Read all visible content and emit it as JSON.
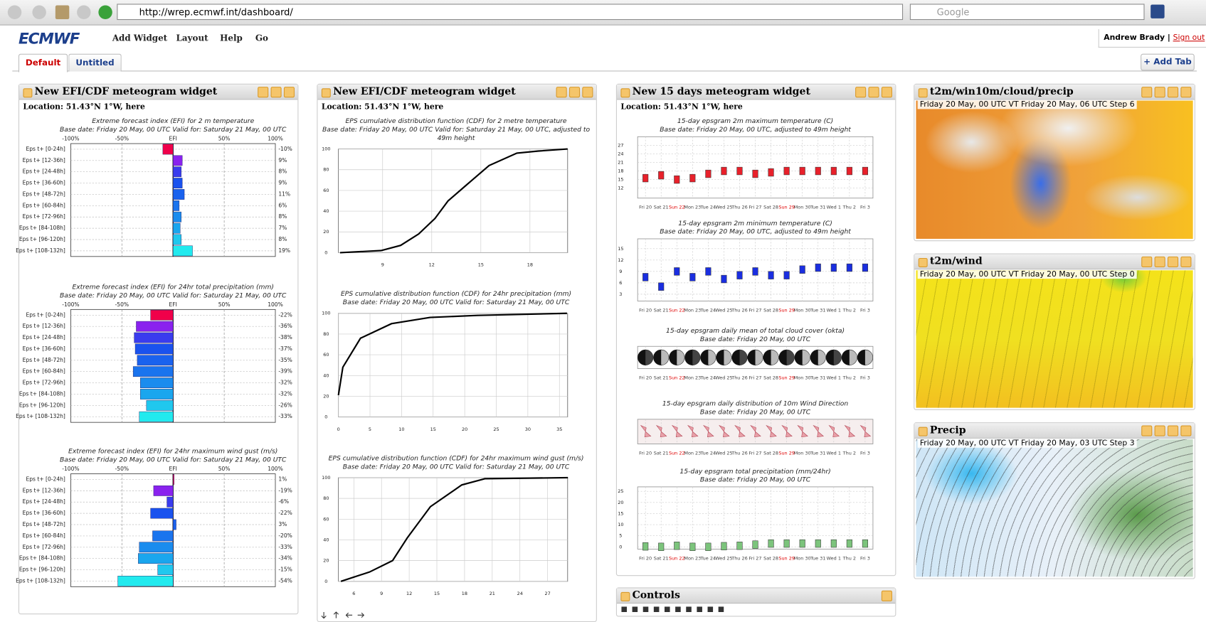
{
  "browser": {
    "url": "http://wrep.ecmwf.int/dashboard/",
    "search": "Google"
  },
  "header": {
    "logo": "ECMWF",
    "menu": [
      "Add Widget",
      "Layout",
      "Help",
      "Go"
    ],
    "user": "Andrew Brady",
    "separator": "|",
    "sign_out": "Sign out"
  },
  "tabs": {
    "items": [
      "Default",
      "Untitled"
    ],
    "add": "+ Add Tab"
  },
  "efi_widget": {
    "title": "New EFI/CDF meteogram widget",
    "location": "Location: 51.43°N 1°W, here",
    "xlim": [
      -100,
      100
    ],
    "axis_labels": [
      {
        "value": -100,
        "label": "-100%"
      },
      {
        "value": -50,
        "label": "-50%"
      },
      {
        "value": 0,
        "label": "EFI"
      },
      {
        "value": 50,
        "label": "50%"
      },
      {
        "value": 100,
        "label": "100%"
      }
    ],
    "categories": [
      "Eps t+ [0-24h]",
      "Eps t+ [12-36h]",
      "Eps t+ [24-48h]",
      "Eps t+ [36-60h]",
      "Eps t+ [48-72h]",
      "Eps t+ [60-84h]",
      "Eps t+ [72-96h]",
      "Eps t+ [84-108h]",
      "Eps t+ [96-120h]",
      "Eps t+ [108-132h]"
    ],
    "colors": [
      "#f0004a",
      "#8a22ee",
      "#3a3cee",
      "#1a52ee",
      "#1a62ee",
      "#1a74ee",
      "#1a8cee",
      "#1aa6ee",
      "#20c8ee",
      "#22eaee"
    ],
    "charts": [
      {
        "title": "Extreme forecast index (EFI) for 2 m temperature",
        "subtitle": "Base date: Friday 20 May, 00 UTC Valid for: Saturday 21 May, 00 UTC",
        "values": [
          -10,
          9,
          8,
          9,
          11,
          6,
          8,
          7,
          8,
          19
        ],
        "value_labels": [
          "-10%",
          "9%",
          "8%",
          "9%",
          "11%",
          "6%",
          "8%",
          "7%",
          "8%",
          "19%"
        ]
      },
      {
        "title": "Extreme forecast index (EFI) for 24hr total precipitation (mm)",
        "subtitle": "Base date: Friday 20 May, 00 UTC Valid for: Saturday 21 May, 00 UTC",
        "values": [
          -22,
          -36,
          -38,
          -37,
          -35,
          -39,
          -32,
          -32,
          -26,
          -33
        ],
        "value_labels": [
          "-22%",
          "-36%",
          "-38%",
          "-37%",
          "-35%",
          "-39%",
          "-32%",
          "-32%",
          "-26%",
          "-33%"
        ]
      },
      {
        "title": "Extreme forecast index (EFI) for 24hr maximum wind gust (m/s)",
        "subtitle": "Base date: Friday 20 May, 00 UTC Valid for: Saturday 21 May, 00 UTC",
        "values": [
          1,
          -19,
          -6,
          -22,
          3,
          -20,
          -33,
          -34,
          -15,
          -54
        ],
        "value_labels": [
          "1%",
          "-19%",
          "-6%",
          "-22%",
          "3%",
          "-20%",
          "-33%",
          "-34%",
          "-15%",
          "-54%"
        ]
      }
    ]
  },
  "cdf_widget": {
    "title": "New EFI/CDF meteogram widget",
    "location": "Location: 51.43°N 1°W, here",
    "ylim": [
      0,
      100
    ],
    "yticks": [
      0,
      20,
      40,
      60,
      80,
      100
    ],
    "charts": [
      {
        "title": [
          "EPS cumulative distribution function (CDF) for 2 metre temperature",
          "Base date: Friday 20 May, 00 UTC Valid for: Saturday 21 May, 00 UTC, adjusted to",
          "49m height"
        ],
        "xlim": [
          6.3,
          20.3
        ],
        "xticks": [
          9,
          12,
          15,
          18
        ],
        "line": {
          "color": "#000000",
          "x": [
            6.4,
            8.9,
            10.1,
            11.2,
            12.2,
            13,
            14.1,
            15.5,
            17.2,
            18.5,
            20.3
          ],
          "y": [
            0,
            2,
            7,
            18,
            33,
            50,
            65,
            84,
            96,
            98,
            100
          ]
        }
      },
      {
        "title": [
          "EPS cumulative distribution function (CDF) for 24hr precipitation (mm)",
          "Base date: Friday 20 May, 00 UTC Valid for: Saturday 21 May, 00 UTC"
        ],
        "xlim": [
          0,
          36.3
        ],
        "xticks": [
          0,
          5,
          10,
          15,
          20,
          25,
          30,
          35
        ],
        "line": {
          "color": "#000000",
          "x": [
            0,
            0.7,
            3.5,
            8.4,
            14.5,
            22,
            36.2
          ],
          "y": [
            21,
            48,
            76,
            90,
            96,
            98,
            100
          ]
        }
      },
      {
        "title": [
          "EPS cumulative distribution function (CDF) for 24hr maximum wind gust (m/s)",
          "Base date: Friday 20 May, 00 UTC Valid for: Saturday 21 May, 00 UTC"
        ],
        "xlim": [
          4.33,
          29.17
        ],
        "xticks": [
          6,
          9,
          12,
          15,
          18,
          21,
          24,
          27
        ],
        "line": {
          "color": "#000000",
          "x": [
            4.6,
            7.7,
            10.2,
            11.8,
            14.3,
            17.7,
            20.2,
            29.2
          ],
          "y": [
            0,
            9,
            20,
            42,
            72,
            93,
            99,
            100
          ]
        }
      }
    ]
  },
  "meteogram_widget": {
    "title": "New 15 days meteogram widget",
    "location": "Location: 51.43°N 1°W, here",
    "dates": [
      "Fri 20",
      "Sat 21",
      "Sun 22",
      "Mon 23",
      "Tue 24",
      "Wed 25",
      "Thu 26",
      "Fri 27",
      "Sat 28",
      "Sun 29",
      "Mon 30",
      "Tue 31",
      "Wed 1",
      "Thu 2",
      "Fri 3"
    ],
    "highlighted": [
      2,
      9
    ],
    "highlight_color": "#e00000",
    "panels": [
      {
        "title": "15-day epsgram 2m maximum temperature (C)",
        "subtitle": "Base date: Friday 20 May, 00 UTC, adjusted to 49m height",
        "ylim": [
          8.5,
          30
        ],
        "yticks": [
          12,
          15,
          18,
          21,
          24,
          27
        ],
        "color": "#e8202a",
        "medians": [
          15.5,
          16.5,
          15,
          15.5,
          17,
          18,
          18,
          17,
          17.5,
          18,
          18,
          18,
          18,
          18,
          18
        ]
      },
      {
        "title": "15-day epsgram 2m minimum temperature (C)",
        "subtitle": "Base date: Friday 20 May, 00 UTC, adjusted to 49m height",
        "ylim": [
          1.2,
          17.6
        ],
        "yticks": [
          3,
          6,
          9,
          12,
          15
        ],
        "color": "#1a2ee0",
        "medians": [
          7.5,
          5,
          9,
          7.5,
          9,
          7,
          8,
          9,
          8,
          8,
          9.5,
          10,
          10,
          10,
          10
        ]
      },
      {
        "title": "15-day epsgram daily mean of total cloud cover (okta)",
        "subtitle": "Base date: Friday 20 May, 00 UTC"
      },
      {
        "title": "15-day epsgram daily distribution of 10m Wind Direction",
        "subtitle": "Base date: Friday 20 May, 00 UTC"
      },
      {
        "title": "15-day epsgram total precipitation (mm/24hr)",
        "subtitle": "Base date: Friday 20 May, 00 UTC",
        "ylim": [
          -1,
          27
        ],
        "yticks": [
          0,
          5,
          10,
          15,
          20,
          25
        ],
        "color": "#7cc47c",
        "medians": [
          0.2,
          0,
          0.5,
          0,
          0,
          0.3,
          0.5,
          1,
          1.5,
          1.5,
          1.5,
          1.5,
          1.5,
          1.5,
          1.5
        ]
      }
    ]
  },
  "map_widgets": [
    {
      "title": "t2m/win10m/cloud/precip",
      "caption": "Friday 20 May, 00 UTC VT Friday 20 May, 06 UTC Step 6"
    },
    {
      "title": "t2m/wind",
      "caption": "Friday 20 May, 00 UTC VT Friday 20 May, 00 UTC Step 0"
    },
    {
      "title": "Precip",
      "caption": "Friday 20 May, 00 UTC VT Friday 20 May, 03 UTC Step 3"
    }
  ],
  "controls": {
    "title": "Controls"
  }
}
